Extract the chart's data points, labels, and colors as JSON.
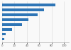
{
  "values": [
    86,
    68,
    58,
    42,
    32,
    16,
    6,
    3
  ],
  "bar_color": "#2e75b6",
  "background_color": "#f9f9f9",
  "ylim": [
    -0.7,
    7.7
  ],
  "xlim": [
    0,
    108
  ],
  "grid_color": "#d9d9d9",
  "xticks": [
    0,
    20,
    40,
    60,
    80,
    100
  ],
  "xtick_labels": [
    "0",
    "20",
    "40",
    "60",
    "80",
    "100"
  ]
}
